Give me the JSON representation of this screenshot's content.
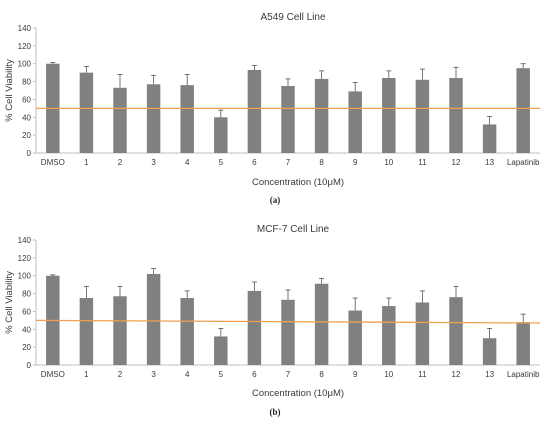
{
  "chart_data": [
    {
      "type": "bar",
      "title": "A549 Cell Line",
      "xlabel": "Concentration (10μM)",
      "ylabel": "% Cell Viability",
      "caption": "(a)",
      "ylim": [
        0,
        140
      ],
      "yticks": [
        0,
        20,
        40,
        60,
        80,
        100,
        120,
        140
      ],
      "grid": false,
      "categories": [
        "DMSO",
        "1",
        "2",
        "3",
        "4",
        "5",
        "6",
        "7",
        "8",
        "9",
        "10",
        "11",
        "12",
        "13",
        "Lapatinib"
      ],
      "values": [
        100,
        90,
        73,
        77,
        76,
        40,
        93,
        75,
        83,
        69,
        84,
        82,
        84,
        32,
        95
      ],
      "errors": [
        1.5,
        7,
        15,
        10,
        12,
        8,
        5,
        8,
        9,
        10,
        8,
        12,
        12,
        9,
        5
      ],
      "reference_line": [
        50,
        50
      ],
      "colors": {
        "bar": "#808080",
        "reference": "#f0a050",
        "axis": "#bfbfbf"
      }
    },
    {
      "type": "bar",
      "title": "MCF-7 Cell Line",
      "xlabel": "Concentration (10μM)",
      "ylabel": "% Cell Viability",
      "caption": "(b)",
      "ylim": [
        0,
        140
      ],
      "yticks": [
        0,
        20,
        40,
        60,
        80,
        100,
        120,
        140
      ],
      "grid": false,
      "categories": [
        "DMSO",
        "1",
        "2",
        "3",
        "4",
        "5",
        "6",
        "7",
        "8",
        "9",
        "10",
        "11",
        "12",
        "13",
        "Lapatinib"
      ],
      "values": [
        100,
        75,
        77,
        102,
        75,
        32,
        83,
        73,
        91,
        61,
        66,
        70,
        76,
        30,
        48
      ],
      "errors": [
        1,
        13,
        11,
        6,
        8,
        9,
        10,
        11,
        6,
        14,
        9,
        13,
        12,
        11,
        9
      ],
      "reference_line": [
        50,
        47
      ],
      "colors": {
        "bar": "#808080",
        "reference": "#f0a050",
        "axis": "#bfbfbf"
      }
    }
  ]
}
